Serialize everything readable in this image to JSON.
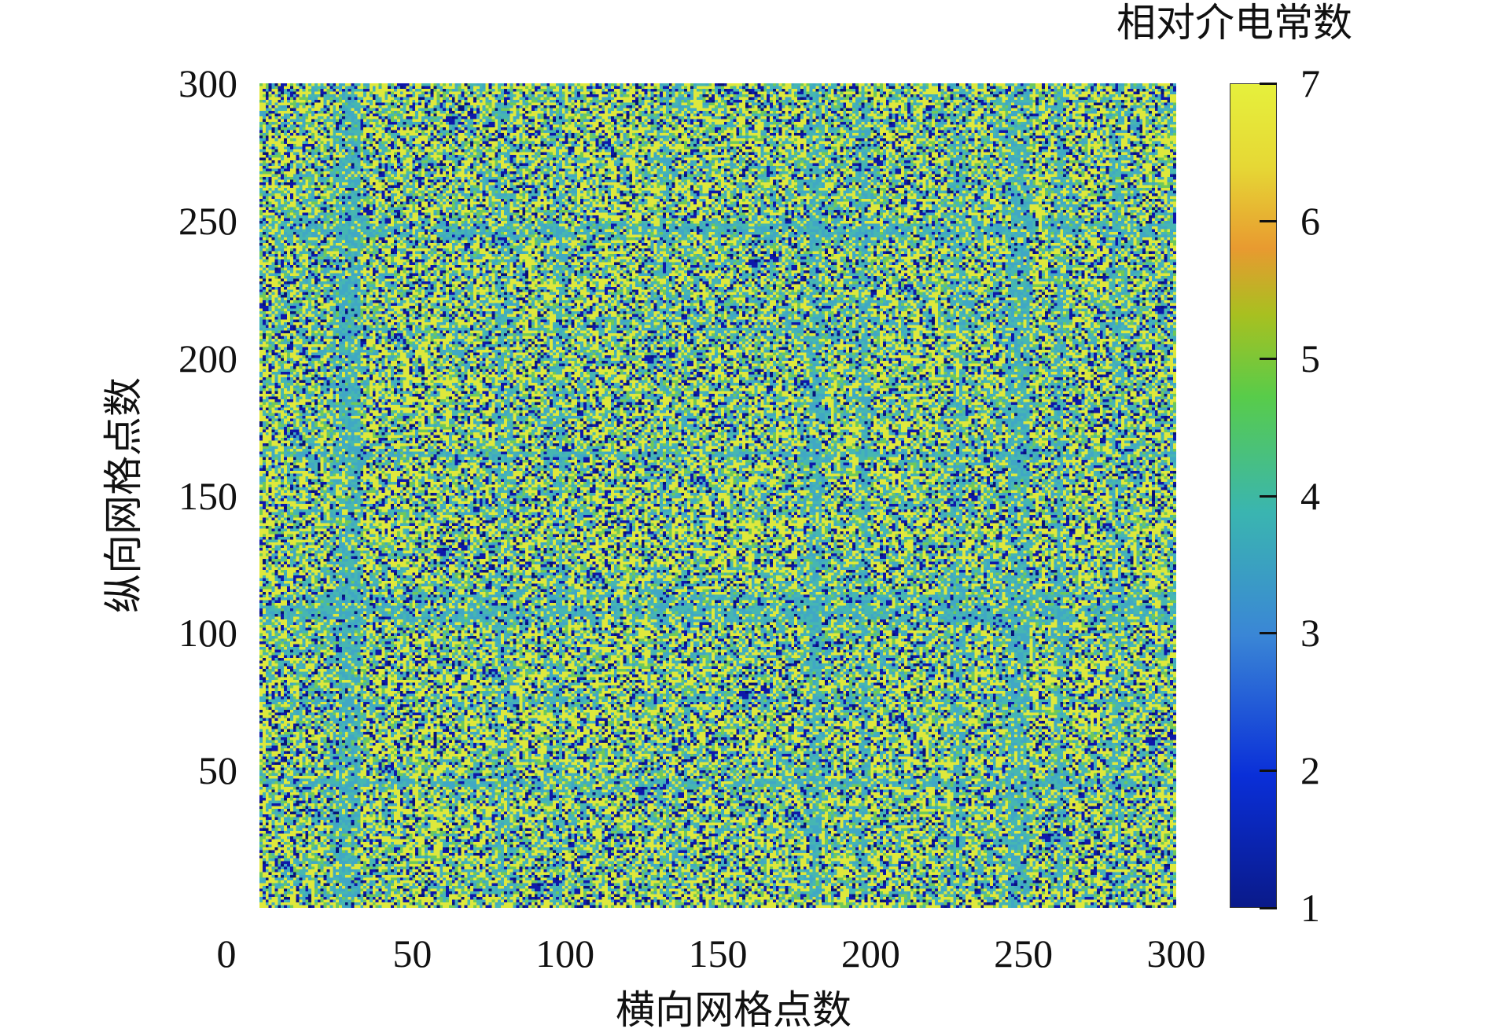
{
  "chart_data": {
    "type": "heatmap",
    "title": "",
    "xlabel": "横向网格点数",
    "ylabel": "纵向网格点数",
    "colorbar_label": "相对介电常数",
    "xlim": [
      0,
      300
    ],
    "ylim": [
      0,
      300
    ],
    "grid_size": [
      300,
      300
    ],
    "x_ticks": [
      "0",
      "50",
      "100",
      "150",
      "200",
      "250",
      "300"
    ],
    "y_ticks": [
      "50",
      "100",
      "150",
      "200",
      "250",
      "300"
    ],
    "colorbar_range": [
      1,
      7
    ],
    "colorbar_ticks": [
      "1",
      "2",
      "3",
      "4",
      "5",
      "6",
      "7"
    ],
    "value_levels": [
      1.2,
      3.3,
      4.2,
      6.8
    ],
    "colormap": [
      "#0a1a8a",
      "#0a2fd8",
      "#3a86d6",
      "#3ab5b0",
      "#58cc4a",
      "#e89a30",
      "#e6f03c"
    ],
    "grid": false
  }
}
